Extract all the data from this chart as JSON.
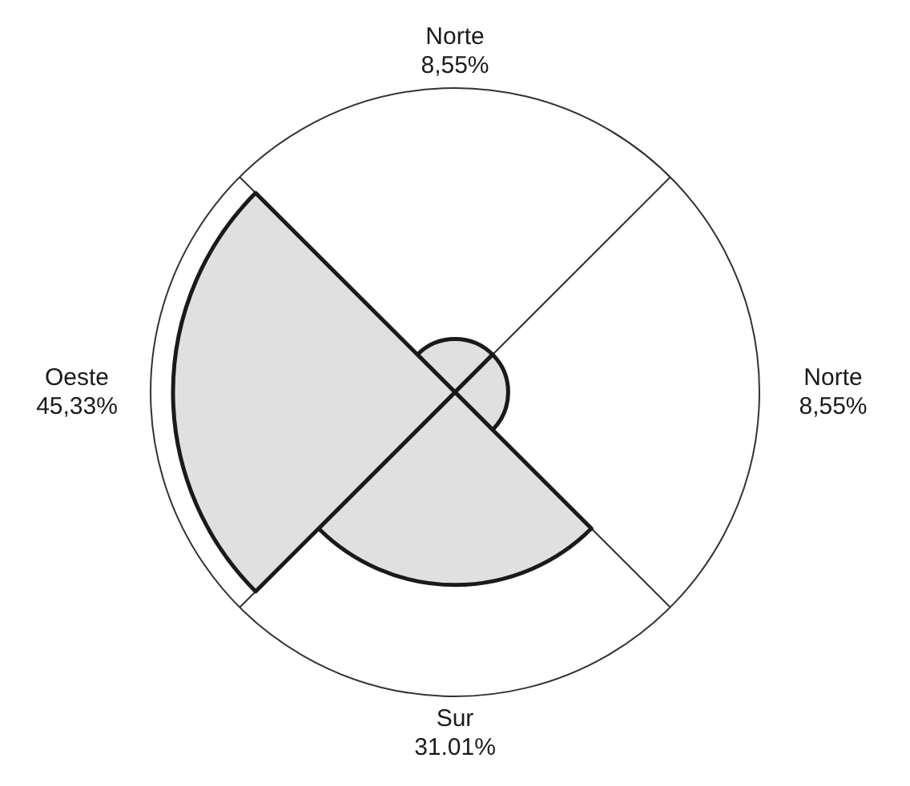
{
  "chart_data": {
    "type": "other",
    "categories": [
      "Norte",
      "Norte",
      "Sur",
      "Oeste"
    ],
    "values": [
      8.55,
      8.55,
      31.01,
      45.33
    ],
    "value_labels": [
      "8,55%",
      "8,55%",
      "31.01%",
      "45,33%"
    ],
    "colors": [
      "#e0e0e0",
      "#e0e0e0",
      "#e0e0e0",
      "#e0e0e0"
    ],
    "legend": false
  }
}
